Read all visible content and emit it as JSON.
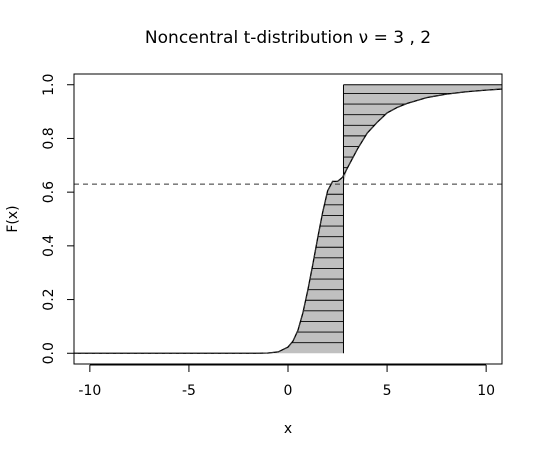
{
  "chart_data": {
    "type": "line",
    "title": "Noncentral t-distribution ν = 3 , 2",
    "xlabel": "x",
    "ylabel": "F(x)",
    "xlim": [
      -10.8,
      10.8
    ],
    "ylim": [
      -0.04,
      1.04
    ],
    "x_ticks": [
      -10,
      -5,
      0,
      5,
      10
    ],
    "y_ticks": [
      0.0,
      0.2,
      0.4,
      0.6,
      0.8,
      1.0
    ],
    "x_tick_labels": [
      "-10",
      "-5",
      "0",
      "5",
      "10"
    ],
    "y_tick_labels": [
      "0.0",
      "0.2",
      "0.4",
      "0.6",
      "0.8",
      "1.0"
    ],
    "grid": false,
    "series": [
      {
        "style": "solid",
        "x": [
          -10.8,
          -8,
          -6,
          -4,
          -3,
          -2,
          -1.5,
          -1,
          -0.5,
          0,
          0.25,
          0.5,
          0.75,
          1,
          1.25,
          1.5,
          1.75,
          2,
          2.25,
          2.5,
          2.75,
          3,
          3.5,
          4,
          4.5,
          5,
          5.5,
          6,
          7,
          8,
          9,
          10,
          10.8
        ],
        "y": [
          0.0,
          0.0,
          0.0,
          0.0,
          0.0,
          0.0,
          0.0,
          0.001,
          0.005,
          0.023,
          0.045,
          0.085,
          0.15,
          0.235,
          0.33,
          0.43,
          0.525,
          0.605,
          0.64,
          0.64,
          0.655,
          0.69,
          0.76,
          0.82,
          0.86,
          0.895,
          0.915,
          0.93,
          0.952,
          0.965,
          0.974,
          0.98,
          0.984
        ]
      },
      {
        "style": "dashed",
        "x": [
          -10.8,
          -8,
          -6,
          -4,
          -3,
          -2,
          -1.5,
          -1,
          -0.5,
          0,
          0.25,
          0.5,
          0.75,
          1,
          1.25,
          1.5,
          1.75,
          2,
          2.25,
          2.5,
          2.75,
          3,
          3.5,
          4,
          4.5,
          5,
          5.5,
          6,
          7,
          8,
          9,
          10,
          10.8
        ],
        "y": [
          0.0,
          0.0,
          0.0,
          0.0,
          0.0,
          0.0,
          0.0,
          0.001,
          0.005,
          0.023,
          0.045,
          0.085,
          0.15,
          0.235,
          0.33,
          0.43,
          0.525,
          0.605,
          0.64,
          0.64,
          0.655,
          0.69,
          0.76,
          0.82,
          0.86,
          0.895,
          0.915,
          0.93,
          0.952,
          0.965,
          0.974,
          0.98,
          0.984
        ]
      }
    ],
    "quantile": {
      "x": 2.8,
      "p": 0.63
    },
    "shaded_region": {
      "fill": "#c0c0c0",
      "hatch": "horizontal lines",
      "lower_region": {
        "x_from": -10.8,
        "x_to": 2.8,
        "y_from": 0.0,
        "y_to": 0.63
      },
      "upper_region": {
        "x_from": 2.8,
        "x_to": 10.8,
        "y_from": 0.63,
        "y_to": 1.0
      }
    },
    "reference_line": {
      "orientation": "horizontal",
      "y": 0.63,
      "style": "dashed"
    }
  }
}
